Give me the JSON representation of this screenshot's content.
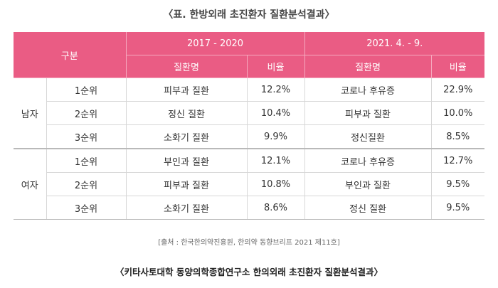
{
  "title": "〈표. 한방외래 초진환자 질환분석결과〉",
  "table": {
    "header_category": "구분",
    "period1": "2017 - 2020",
    "period2": "2021. 4. - 9.",
    "col_disease": "질환명",
    "col_ratio": "비율",
    "groups": [
      {
        "gender": "남자",
        "rows": [
          {
            "rank": "1순위",
            "d1": "피부과 질환",
            "r1": "12.2%",
            "d2": "코로나 후유증",
            "r2": "22.9%"
          },
          {
            "rank": "2순위",
            "d1": "정신 질환",
            "r1": "10.4%",
            "d2": "피부과 질환",
            "r2": "10.0%"
          },
          {
            "rank": "3순위",
            "d1": "소화기 질환",
            "r1": "9.9%",
            "d2": "정신질환",
            "r2": "8.5%"
          }
        ]
      },
      {
        "gender": "여자",
        "rows": [
          {
            "rank": "1순위",
            "d1": "부인과 질환",
            "r1": "12.1%",
            "d2": "코로나 후유증",
            "r2": "12.7%"
          },
          {
            "rank": "2순위",
            "d1": "피부과 질환",
            "r1": "10.8%",
            "d2": "부인과 질환",
            "r2": "9.5%"
          },
          {
            "rank": "3순위",
            "d1": "소화기 질환",
            "r1": "8.6%",
            "d2": "정신 질환",
            "r2": "9.5%"
          }
        ]
      }
    ]
  },
  "source": "[출처 : 한국한의약진흥원, 한의약 동향브리프 2021 제11호]",
  "caption": "〈키타사토대학 동양의학종합연구소 한의외래 초진환자 질환분석결과〉",
  "colors": {
    "header_bg": "#ea5c84",
    "header_text": "#ffffff"
  }
}
